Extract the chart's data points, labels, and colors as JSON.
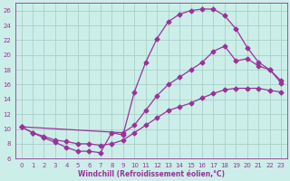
{
  "xlabel": "Windchill (Refroidissement éolien,°C)",
  "bg_color": "#cceee8",
  "grid_color": "#aacfca",
  "line_color": "#993399",
  "xlim": [
    -0.5,
    23.5
  ],
  "ylim": [
    6,
    27
  ],
  "xticks": [
    0,
    1,
    2,
    3,
    4,
    5,
    6,
    7,
    8,
    9,
    10,
    11,
    12,
    13,
    14,
    15,
    16,
    17,
    18,
    19,
    20,
    21,
    22,
    23
  ],
  "yticks": [
    6,
    8,
    10,
    12,
    14,
    16,
    18,
    20,
    22,
    24,
    26
  ],
  "curve1_x": [
    0,
    1,
    2,
    3,
    4,
    5,
    6,
    7,
    8,
    9,
    10,
    11,
    12,
    13,
    14,
    15,
    16,
    17,
    18,
    19,
    20,
    21,
    22,
    23
  ],
  "curve1_y": [
    10.3,
    9.5,
    8.8,
    8.2,
    7.5,
    7.0,
    7.0,
    6.8,
    9.5,
    9.2,
    15.0,
    19.0,
    22.2,
    24.5,
    25.5,
    26.0,
    26.2,
    26.2,
    25.3,
    23.5,
    21.0,
    19.0,
    18.0,
    16.2
  ],
  "curve2_x": [
    0,
    9,
    10,
    11,
    12,
    13,
    14,
    15,
    16,
    17,
    18,
    19,
    20,
    21,
    22,
    23
  ],
  "curve2_y": [
    10.3,
    9.5,
    10.5,
    12.5,
    14.5,
    16.0,
    17.0,
    18.0,
    19.0,
    20.5,
    21.2,
    19.2,
    19.5,
    18.5,
    18.0,
    16.5
  ],
  "curve3_x": [
    0,
    1,
    2,
    3,
    4,
    5,
    6,
    7,
    8,
    9,
    10,
    11,
    12,
    13,
    14,
    15,
    16,
    17,
    18,
    19,
    20,
    21,
    22,
    23
  ],
  "curve3_y": [
    10.3,
    9.5,
    9.0,
    8.5,
    8.3,
    8.0,
    8.0,
    7.8,
    8.0,
    8.5,
    9.5,
    10.5,
    11.5,
    12.5,
    13.0,
    13.5,
    14.2,
    14.8,
    15.3,
    15.5,
    15.5,
    15.5,
    15.2,
    15.0
  ],
  "markersize": 2.5,
  "linewidth": 0.9,
  "tick_fontsize": 5,
  "xlabel_fontsize": 5.5
}
